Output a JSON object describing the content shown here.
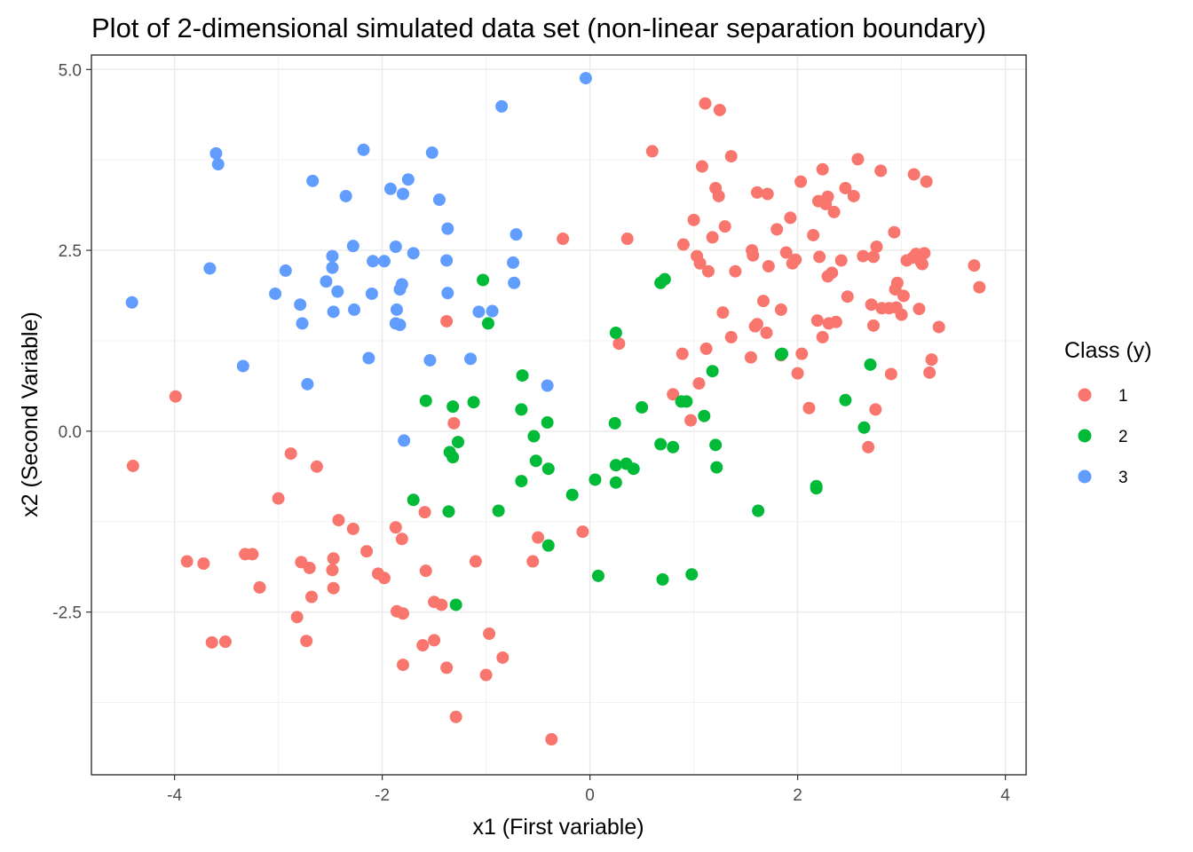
{
  "chart_data": {
    "type": "scatter",
    "title": "Plot of 2-dimensional simulated data set (non-linear separation boundary)",
    "xlabel": "x1 (First variable)",
    "ylabel": "x2 (Second Variable)",
    "xlim": [
      -4.8,
      4.2
    ],
    "ylim": [
      -4.75,
      5.2
    ],
    "x_ticks": [
      -4,
      -2,
      0,
      2,
      4
    ],
    "x_tick_labels": [
      "-4",
      "-2",
      "0",
      "2",
      "4"
    ],
    "y_ticks": [
      -2.5,
      0,
      2.5,
      5
    ],
    "y_tick_labels": [
      "-2.5",
      "0.0",
      "2.5",
      "5.0"
    ],
    "x_minor": [
      -3,
      -1,
      1,
      3
    ],
    "y_minor": [
      -3.75,
      -1.25,
      1.25,
      3.75
    ],
    "grid": true,
    "legend": {
      "title": "Class (y)",
      "position": "right",
      "entries": [
        "1",
        "2",
        "3"
      ]
    },
    "series": [
      {
        "name": "1",
        "color": "#F8766D",
        "points": [
          [
            -3.99,
            0.48
          ],
          [
            -4.4,
            -0.48
          ],
          [
            -3.88,
            -1.8
          ],
          [
            -3.72,
            -1.83
          ],
          [
            -3.32,
            -1.7
          ],
          [
            -3.25,
            -1.7
          ],
          [
            -3.18,
            -2.16
          ],
          [
            -3.64,
            -2.92
          ],
          [
            -3.51,
            -2.91
          ],
          [
            -3.0,
            -0.93
          ],
          [
            -2.88,
            -0.31
          ],
          [
            -2.63,
            -0.49
          ],
          [
            -2.82,
            -2.57
          ],
          [
            -2.78,
            -1.81
          ],
          [
            -2.7,
            -1.89
          ],
          [
            -2.73,
            -2.9
          ],
          [
            -2.68,
            -2.29
          ],
          [
            -2.47,
            -1.76
          ],
          [
            -2.48,
            -1.92
          ],
          [
            -2.47,
            -2.17
          ],
          [
            -2.42,
            -1.23
          ],
          [
            -2.28,
            -1.35
          ],
          [
            -2.15,
            -1.66
          ],
          [
            -2.04,
            -1.97
          ],
          [
            -1.98,
            -2.03
          ],
          [
            -1.87,
            -1.33
          ],
          [
            -1.86,
            -2.49
          ],
          [
            -1.8,
            -2.52
          ],
          [
            -1.81,
            -1.49
          ],
          [
            -1.8,
            -3.23
          ],
          [
            -1.59,
            -1.12
          ],
          [
            -1.58,
            -1.93
          ],
          [
            -1.5,
            -2.36
          ],
          [
            -1.43,
            -2.4
          ],
          [
            -1.5,
            -2.89
          ],
          [
            -1.61,
            -2.96
          ],
          [
            -1.38,
            -3.27
          ],
          [
            -1.38,
            1.52
          ],
          [
            -1.31,
            0.11
          ],
          [
            -1.29,
            -3.95
          ],
          [
            -1.1,
            -1.8
          ],
          [
            -0.97,
            -2.8
          ],
          [
            -1.0,
            -3.37
          ],
          [
            -0.84,
            -3.13
          ],
          [
            -0.55,
            -1.8
          ],
          [
            -0.5,
            -1.47
          ],
          [
            -0.37,
            -4.26
          ],
          [
            -0.07,
            -1.39
          ],
          [
            -0.26,
            2.66
          ],
          [
            0.28,
            1.21
          ],
          [
            0.36,
            2.66
          ],
          [
            0.6,
            3.87
          ],
          [
            0.8,
            0.51
          ],
          [
            0.89,
            1.07
          ],
          [
            0.9,
            2.58
          ],
          [
            0.97,
            0.15
          ],
          [
            1.0,
            2.92
          ],
          [
            1.03,
            2.42
          ],
          [
            1.06,
            2.32
          ],
          [
            1.05,
            0.66
          ],
          [
            1.08,
            3.66
          ],
          [
            1.11,
            4.53
          ],
          [
            1.12,
            1.14
          ],
          [
            1.14,
            2.21
          ],
          [
            1.18,
            2.68
          ],
          [
            1.21,
            3.36
          ],
          [
            1.24,
            3.25
          ],
          [
            1.25,
            4.44
          ],
          [
            1.28,
            1.64
          ],
          [
            1.3,
            2.83
          ],
          [
            1.36,
            3.8
          ],
          [
            1.36,
            1.3
          ],
          [
            1.4,
            2.21
          ],
          [
            1.55,
            1.02
          ],
          [
            1.57,
            2.43
          ],
          [
            1.56,
            2.5
          ],
          [
            1.59,
            1.45
          ],
          [
            1.61,
            1.48
          ],
          [
            1.61,
            3.3
          ],
          [
            1.67,
            1.8
          ],
          [
            1.7,
            1.36
          ],
          [
            1.71,
            3.28
          ],
          [
            1.72,
            2.28
          ],
          [
            1.8,
            2.79
          ],
          [
            1.84,
            1.68
          ],
          [
            1.84,
            1.05
          ],
          [
            1.89,
            2.47
          ],
          [
            1.93,
            2.95
          ],
          [
            1.95,
            2.32
          ],
          [
            1.98,
            2.37
          ],
          [
            2.0,
            0.8
          ],
          [
            2.03,
            3.45
          ],
          [
            2.04,
            1.07
          ],
          [
            2.11,
            0.32
          ],
          [
            2.15,
            2.71
          ],
          [
            2.2,
            3.18
          ],
          [
            2.19,
            1.53
          ],
          [
            2.21,
            2.41
          ],
          [
            2.24,
            3.62
          ],
          [
            2.24,
            1.3
          ],
          [
            2.27,
            3.14
          ],
          [
            2.29,
            2.14
          ],
          [
            2.29,
            3.24
          ],
          [
            2.3,
            1.49
          ],
          [
            2.33,
            2.19
          ],
          [
            2.35,
            3.03
          ],
          [
            2.37,
            1.51
          ],
          [
            2.42,
            2.36
          ],
          [
            2.46,
            3.36
          ],
          [
            2.48,
            1.86
          ],
          [
            2.54,
            3.25
          ],
          [
            2.58,
            3.76
          ],
          [
            2.63,
            2.42
          ],
          [
            2.68,
            -0.22
          ],
          [
            2.71,
            1.75
          ],
          [
            2.73,
            1.46
          ],
          [
            2.73,
            2.41
          ],
          [
            2.75,
            0.3
          ],
          [
            2.76,
            2.55
          ],
          [
            2.8,
            3.6
          ],
          [
            2.81,
            1.7
          ],
          [
            2.88,
            1.7
          ],
          [
            2.9,
            0.79
          ],
          [
            2.93,
            2.75
          ],
          [
            2.95,
            1.71
          ],
          [
            2.94,
            1.96
          ],
          [
            2.96,
            2.05
          ],
          [
            3.0,
            1.61
          ],
          [
            3.02,
            1.87
          ],
          [
            3.05,
            2.36
          ],
          [
            3.11,
            2.4
          ],
          [
            3.12,
            3.55
          ],
          [
            3.14,
            2.45
          ],
          [
            3.17,
            1.69
          ],
          [
            3.19,
            2.33
          ],
          [
            3.2,
            2.31
          ],
          [
            3.22,
            2.46
          ],
          [
            3.24,
            3.45
          ],
          [
            3.27,
            0.81
          ],
          [
            3.29,
            0.99
          ],
          [
            3.36,
            1.44
          ],
          [
            3.7,
            2.29
          ],
          [
            3.75,
            1.99
          ]
        ]
      },
      {
        "name": "2",
        "color": "#00BA38",
        "points": [
          [
            -1.03,
            2.09
          ],
          [
            -0.98,
            1.49
          ],
          [
            -1.58,
            0.42
          ],
          [
            -1.32,
            0.34
          ],
          [
            -1.12,
            0.4
          ],
          [
            -1.27,
            -0.15
          ],
          [
            -1.35,
            -0.29
          ],
          [
            -1.32,
            -0.36
          ],
          [
            -1.7,
            -0.95
          ],
          [
            -1.36,
            -1.11
          ],
          [
            -1.29,
            -2.4
          ],
          [
            -0.88,
            -1.1
          ],
          [
            -0.65,
            0.77
          ],
          [
            -0.66,
            0.3
          ],
          [
            -0.54,
            -0.07
          ],
          [
            -0.52,
            -0.41
          ],
          [
            -0.4,
            -0.52
          ],
          [
            -0.41,
            0.12
          ],
          [
            -0.66,
            -0.69
          ],
          [
            -0.4,
            -1.58
          ],
          [
            -0.17,
            -0.88
          ],
          [
            0.05,
            -0.67
          ],
          [
            0.08,
            -2.0
          ],
          [
            0.25,
            1.36
          ],
          [
            0.24,
            0.11
          ],
          [
            0.25,
            -0.47
          ],
          [
            0.25,
            -0.71
          ],
          [
            0.35,
            -0.45
          ],
          [
            0.42,
            -0.52
          ],
          [
            0.5,
            0.33
          ],
          [
            0.68,
            -0.18
          ],
          [
            0.68,
            2.05
          ],
          [
            0.72,
            2.1
          ],
          [
            0.7,
            -2.05
          ],
          [
            0.8,
            -0.22
          ],
          [
            0.88,
            0.41
          ],
          [
            0.93,
            0.41
          ],
          [
            0.98,
            -1.98
          ],
          [
            1.1,
            0.21
          ],
          [
            1.18,
            0.83
          ],
          [
            1.21,
            -0.19
          ],
          [
            1.22,
            -0.5
          ],
          [
            1.62,
            -1.1
          ],
          [
            1.84,
            1.06
          ],
          [
            1.85,
            1.07
          ],
          [
            2.18,
            -0.76
          ],
          [
            2.18,
            -0.79
          ],
          [
            2.46,
            0.43
          ],
          [
            2.64,
            0.05
          ],
          [
            2.7,
            0.92
          ]
        ]
      },
      {
        "name": "3",
        "color": "#619CFF",
        "points": [
          [
            -4.41,
            1.78
          ],
          [
            -3.66,
            2.25
          ],
          [
            -3.6,
            3.84
          ],
          [
            -3.58,
            3.69
          ],
          [
            -3.34,
            0.9
          ],
          [
            -3.03,
            1.9
          ],
          [
            -2.93,
            2.22
          ],
          [
            -2.79,
            1.75
          ],
          [
            -2.77,
            1.49
          ],
          [
            -2.72,
            0.65
          ],
          [
            -2.67,
            3.46
          ],
          [
            -2.54,
            2.07
          ],
          [
            -2.48,
            2.26
          ],
          [
            -2.47,
            1.65
          ],
          [
            -2.48,
            2.42
          ],
          [
            -2.43,
            1.93
          ],
          [
            -2.35,
            3.25
          ],
          [
            -2.28,
            2.56
          ],
          [
            -2.27,
            1.68
          ],
          [
            -2.18,
            3.89
          ],
          [
            -2.13,
            1.01
          ],
          [
            -2.09,
            2.35
          ],
          [
            -2.1,
            1.9
          ],
          [
            -1.98,
            2.35
          ],
          [
            -1.92,
            3.35
          ],
          [
            -1.87,
            2.55
          ],
          [
            -1.87,
            1.49
          ],
          [
            -1.86,
            1.68
          ],
          [
            -1.83,
            1.47
          ],
          [
            -1.83,
            1.96
          ],
          [
            -1.81,
            2.03
          ],
          [
            -1.8,
            3.28
          ],
          [
            -1.79,
            -0.13
          ],
          [
            -1.75,
            3.48
          ],
          [
            -1.7,
            2.46
          ],
          [
            -1.54,
            0.98
          ],
          [
            -1.52,
            3.85
          ],
          [
            -1.45,
            3.2
          ],
          [
            -1.38,
            2.36
          ],
          [
            -1.37,
            1.91
          ],
          [
            -1.37,
            2.8
          ],
          [
            -1.15,
            1.0
          ],
          [
            -1.07,
            1.65
          ],
          [
            -0.94,
            1.66
          ],
          [
            -0.85,
            4.49
          ],
          [
            -0.74,
            2.33
          ],
          [
            -0.73,
            2.05
          ],
          [
            -0.71,
            2.72
          ],
          [
            -0.41,
            0.63
          ],
          [
            -0.04,
            4.88
          ]
        ]
      }
    ]
  }
}
